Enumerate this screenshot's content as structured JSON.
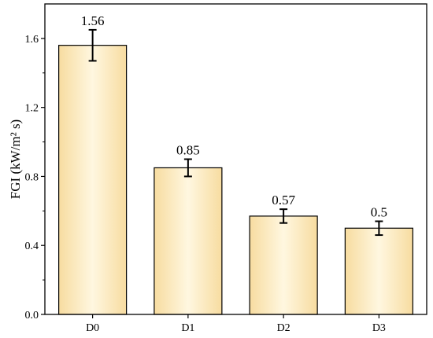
{
  "chart_data": {
    "type": "bar",
    "categories": [
      "D0",
      "D1",
      "D2",
      "D3"
    ],
    "values": [
      1.56,
      0.85,
      0.57,
      0.5
    ],
    "value_labels": [
      "1.56",
      "0.85",
      "0.57",
      "0.5"
    ],
    "errors": [
      0.09,
      0.05,
      0.04,
      0.04
    ],
    "ylabel": "FGI (kW/m² s)",
    "xlabel": "",
    "title": "",
    "ylim": [
      0,
      1.8
    ],
    "yticks": [
      0.0,
      0.4,
      0.8,
      1.2,
      1.6
    ],
    "ytick_labels": [
      "0.0",
      "0.4",
      "0.8",
      "1.2",
      "1.6"
    ],
    "grid": false,
    "bar_color_edge": "#f7dca0",
    "bar_color_center": "#fff7e0",
    "bar_outline": "#000000"
  }
}
